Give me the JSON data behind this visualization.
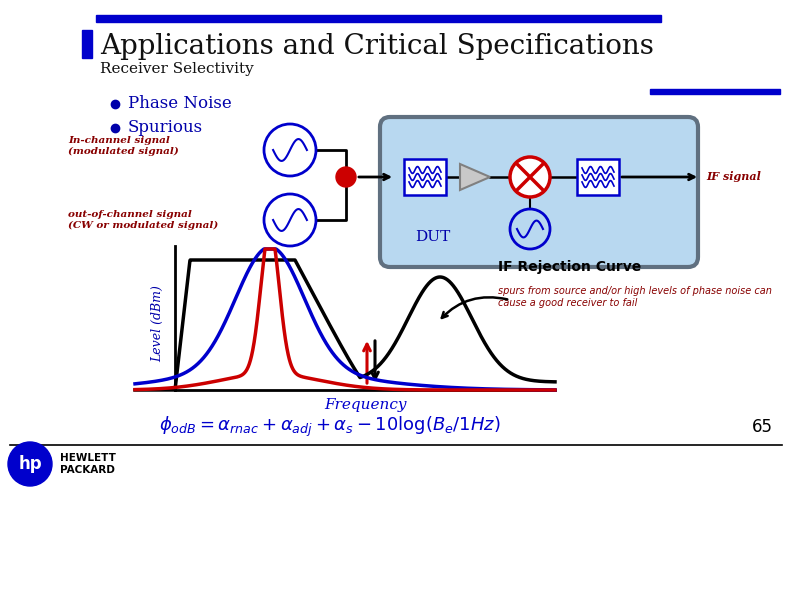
{
  "title": "Applications and Critical Specifications",
  "subtitle": "Receiver Selectivity",
  "bullet1": "Phase Noise",
  "bullet2": "Spurious",
  "label_in_channel": "In-channel signal\n(modulated signal)",
  "label_out_channel": "out-of-channel signal\n(CW or modulated signal)",
  "label_IF": "IF signal",
  "label_DUT": "DUT",
  "label_IF_curve": "IF Rejection Curve",
  "label_spurs_note": "spurs from source and/or high levels of phase noise can\ncause a good receiver to fail",
  "label_freq": "Frequency",
  "label_level": "Level (dBm)",
  "page_num": "65",
  "title_bar_color": "#0000CC",
  "bullet_color": "#0000AA",
  "in_channel_color": "#880000",
  "out_channel_color": "#880000",
  "if_signal_color": "#880000",
  "dut_box_color": "#B8D8F0",
  "dut_border_color": "#607080",
  "formula_color": "#0000CC",
  "spurs_note_color": "#880000",
  "bg_color": "#FFFFFF",
  "blue_curve_color": "#0000CC",
  "red_curve_color": "#CC0000",
  "black_curve_color": "#000000"
}
